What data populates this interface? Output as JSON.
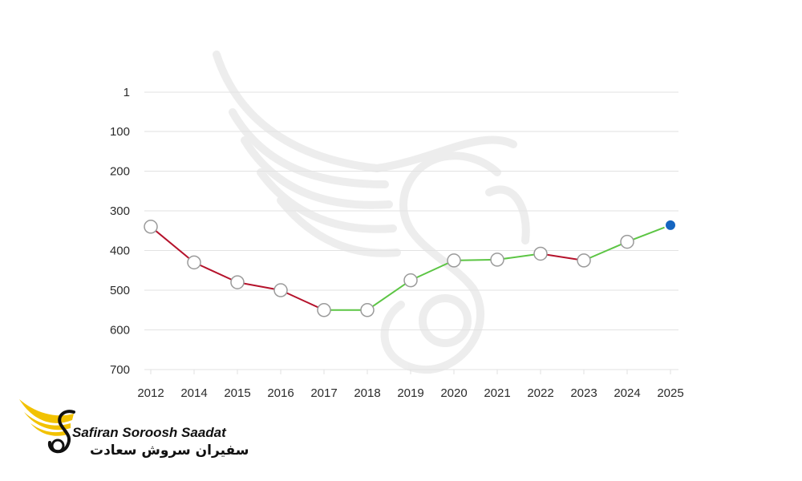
{
  "chart_data": {
    "type": "line",
    "categories": [
      "2012",
      "2014",
      "2015",
      "2016",
      "2017",
      "2018",
      "2019",
      "2020",
      "2021",
      "2022",
      "2023",
      "2024",
      "2025"
    ],
    "values": [
      340,
      430,
      480,
      500,
      550,
      550,
      475,
      425,
      423,
      408,
      425,
      378,
      336
    ],
    "y_ticks": [
      "1",
      "100",
      "200",
      "300",
      "400",
      "500",
      "600",
      "700"
    ],
    "ylim": [
      1,
      700
    ],
    "y_inverted": true,
    "grid": true,
    "title": "",
    "xlabel": "",
    "ylabel": "",
    "colors": {
      "declining": "#b5122b",
      "improving": "#5cc544",
      "marker_fill": "#ffffff",
      "marker_stroke": "#9a9a9a",
      "latest_marker": "#1565c0",
      "grid": "#e2e2e2",
      "text": "#2b2b2b"
    }
  },
  "logo": {
    "name_en": "Safiran Soroosh Saadat",
    "name_fa": "سفیران سروش سعادت",
    "icon": "winged-s-logo-icon",
    "colors": {
      "wing": "#f2c200",
      "ink": "#111111"
    }
  },
  "watermark": {
    "icon": "winged-s-watermark-icon"
  }
}
